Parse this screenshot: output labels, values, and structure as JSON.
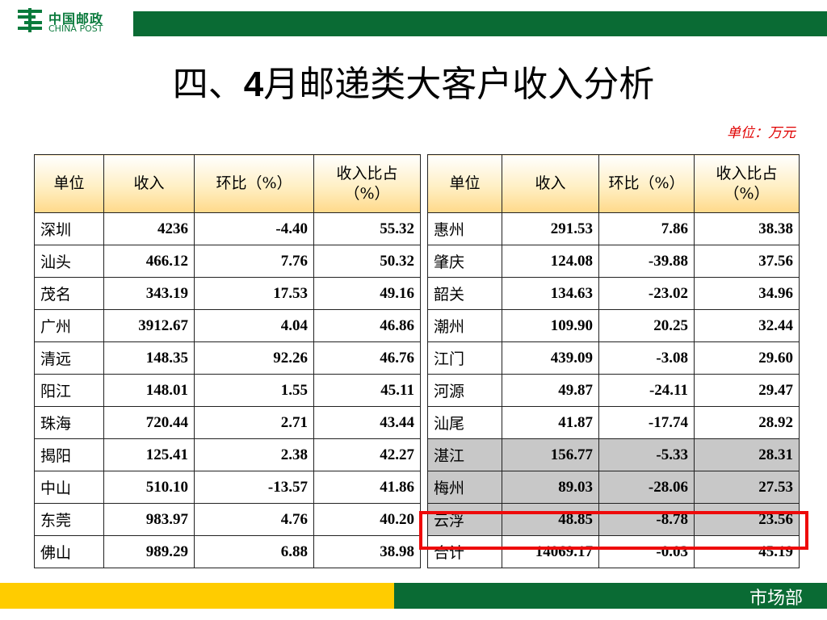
{
  "header": {
    "logo_cn": "中国邮政",
    "logo_en": "CHINA POST"
  },
  "title": {
    "prefix": "四、",
    "number": "4",
    "suffix": "月邮递类大客户收入分析"
  },
  "unit_note": "单位：万元",
  "columns_left": [
    "单位",
    "收入",
    "环比（%）",
    "收入比占（%）"
  ],
  "columns_right": [
    "单位",
    "收入",
    "环比（%）",
    "收入比占（%）"
  ],
  "rows_left": [
    [
      "深圳",
      "4236",
      "-4.40",
      "55.32"
    ],
    [
      "汕头",
      "466.12",
      "7.76",
      "50.32"
    ],
    [
      "茂名",
      "343.19",
      "17.53",
      "49.16"
    ],
    [
      "广州",
      "3912.67",
      "4.04",
      "46.86"
    ],
    [
      "清远",
      "148.35",
      "92.26",
      "46.76"
    ],
    [
      "阳江",
      "148.01",
      "1.55",
      "45.11"
    ],
    [
      "珠海",
      "720.44",
      "2.71",
      "43.44"
    ],
    [
      "揭阳",
      "125.41",
      "2.38",
      "42.27"
    ],
    [
      "中山",
      "510.10",
      "-13.57",
      "41.86"
    ],
    [
      "东莞",
      "983.97",
      "4.76",
      "40.20"
    ],
    [
      "佛山",
      "989.29",
      "6.88",
      "38.98"
    ]
  ],
  "rows_right": [
    [
      "惠州",
      "291.53",
      "7.86",
      "38.38"
    ],
    [
      "肇庆",
      "124.08",
      "-39.88",
      "37.56"
    ],
    [
      "韶关",
      "134.63",
      "-23.02",
      "34.96"
    ],
    [
      "潮州",
      "109.90",
      "20.25",
      "32.44"
    ],
    [
      "江门",
      "439.09",
      "-3.08",
      "29.60"
    ],
    [
      "河源",
      "49.87",
      "-24.11",
      "29.47"
    ],
    [
      "汕尾",
      "41.87",
      "-17.74",
      "28.92"
    ],
    [
      "湛江",
      "156.77",
      "-5.33",
      "28.31"
    ],
    [
      "梅州",
      "89.03",
      "-28.06",
      "27.53"
    ],
    [
      "云浮",
      "48.85",
      "-8.78",
      "23.56"
    ],
    [
      "合计",
      "14069.17",
      "-0.03",
      "45.19"
    ]
  ],
  "shaded_rows_right": [
    7,
    8,
    9
  ],
  "highlighted_row_right": 9,
  "footer": {
    "department": "市场部"
  },
  "colors": {
    "brand_green": "#0a6b34",
    "brand_yellow": "#ffcc00",
    "header_fill": "#ffd98a",
    "shaded_fill": "#c8c8c8",
    "highlight_border": "#ee0a0a",
    "unit_note": "#e00000"
  }
}
